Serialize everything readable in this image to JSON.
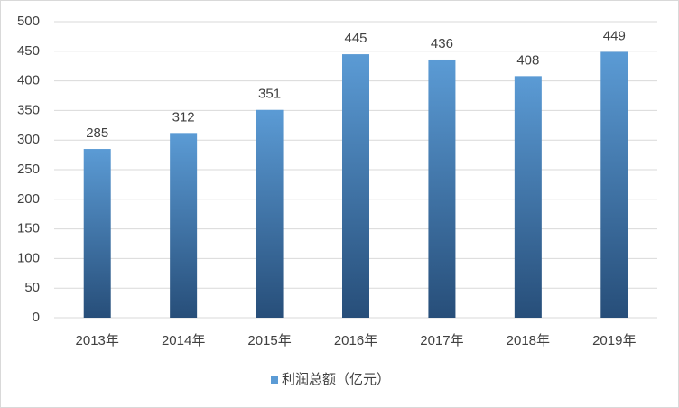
{
  "chart_data": {
    "type": "bar",
    "categories": [
      "2013年",
      "2014年",
      "2015年",
      "2016年",
      "2017年",
      "2018年",
      "2019年"
    ],
    "series": [
      {
        "name": "利润总额（亿元）",
        "color": "#5b9bd5",
        "values": [
          285,
          312,
          351,
          445,
          436,
          408,
          449
        ]
      }
    ],
    "ylim": [
      0,
      500
    ],
    "yticks": [
      0,
      50,
      100,
      150,
      200,
      250,
      300,
      350,
      400,
      450,
      500
    ],
    "grid": true,
    "legend": "bottom",
    "data_labels": true
  }
}
